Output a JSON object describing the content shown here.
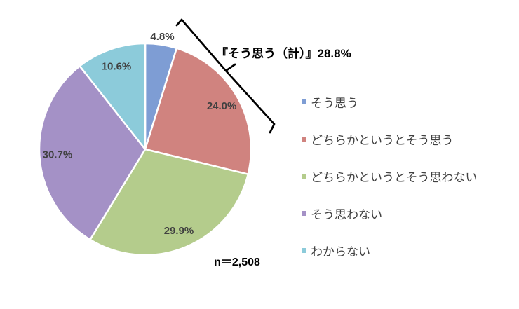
{
  "chart_data": {
    "type": "pie",
    "title": "",
    "categories": [
      "そう思う",
      "どちらかというとそう思う",
      "どちらかというとそう思わない",
      "そう思わない",
      "わからない"
    ],
    "values": [
      4.8,
      24.0,
      29.9,
      30.7,
      10.6
    ],
    "value_labels": [
      "4.8%",
      "24.0%",
      "29.9%",
      "30.7%",
      "10.6%"
    ],
    "colors": [
      "#7E9DD4",
      "#D0837F",
      "#B4CC8C",
      "#A491C6",
      "#8CCBDA"
    ],
    "start_angle_deg": 0,
    "direction": "clockwise",
    "legend_position": "right",
    "annotation_text": "『そう思う（計）』28.8%",
    "sample_label": "n＝2,508",
    "label_color": "#404040",
    "bracket_color": "#000000"
  }
}
